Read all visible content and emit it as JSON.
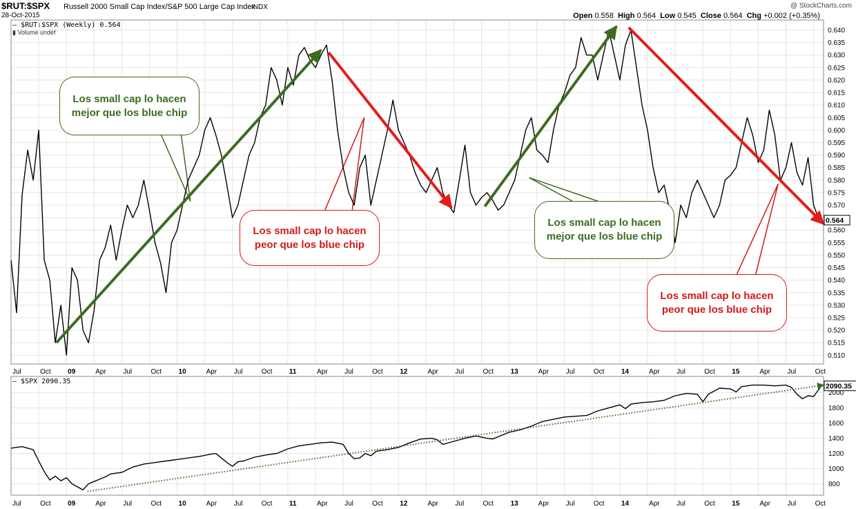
{
  "header": {
    "ticker": "$RUT:$SPX",
    "title": "Russell 2000 Small Cap Index/S&P 500 Large Cap Index",
    "exchange": "INDX",
    "date": "28-Oct-2015",
    "watermark": "@ StockCharts.com",
    "ohlc": {
      "open_label": "Open",
      "open": "0.558",
      "high_label": "High",
      "high": "0.564",
      "low_label": "Low",
      "low": "0.545",
      "close_label": "Close",
      "close": "0.564",
      "chg_label": "Chg",
      "chg": "+0.002 (+0.35%)"
    }
  },
  "legend": {
    "main": "$RUT:$SPX (Weekly) 0.564",
    "volume": "Volume undef",
    "lower": "$SPX 2090.35"
  },
  "callouts": [
    {
      "text": "Los small cap lo hacen mejor que los blue chip",
      "color": "#3d6b1e"
    },
    {
      "text": "Los small cap lo hacen peor que los blue chip",
      "color": "#d41818"
    },
    {
      "text": "Los small cap lo hacen mejor que los blue chip",
      "color": "#3d6b1e"
    },
    {
      "text": "Los small cap lo hacen peor que los blue chip",
      "color": "#d41818"
    }
  ],
  "colors": {
    "up_trend": "#3d6b1e",
    "down_trend": "#e41b1b",
    "price_line": "#000000",
    "grid": "#e4e4e4"
  },
  "chart_data": [
    {
      "type": "line",
      "series": [
        {
          "name": "$RUT:$SPX (Weekly)",
          "x": [
            2008.5,
            2008.55,
            2008.6,
            2008.65,
            2008.7,
            2008.75,
            2008.8,
            2008.85,
            2008.9,
            2008.95,
            2009.0,
            2009.05,
            2009.1,
            2009.15,
            2009.2,
            2009.25,
            2009.3,
            2009.35,
            2009.4,
            2009.45,
            2009.5,
            2009.55,
            2009.6,
            2009.65,
            2009.7,
            2009.75,
            2009.8,
            2009.85,
            2009.9,
            2009.95,
            2010.0,
            2010.05,
            2010.1,
            2010.15,
            2010.2,
            2010.25,
            2010.3,
            2010.35,
            2010.4,
            2010.45,
            2010.5,
            2010.55,
            2010.6,
            2010.65,
            2010.7,
            2010.75,
            2010.8,
            2010.85,
            2010.9,
            2010.95,
            2011.0,
            2011.05,
            2011.1,
            2011.15,
            2011.2,
            2011.25,
            2011.3,
            2011.35,
            2011.4,
            2011.45,
            2011.5,
            2011.55,
            2011.6,
            2011.65,
            2011.7,
            2011.75,
            2011.8,
            2011.85,
            2011.9,
            2011.95,
            2012.0,
            2012.05,
            2012.1,
            2012.15,
            2012.2,
            2012.25,
            2012.3,
            2012.35,
            2012.4,
            2012.45,
            2012.5,
            2012.55,
            2012.6,
            2012.65,
            2012.7,
            2012.75,
            2012.8,
            2012.85,
            2012.9,
            2012.95,
            2013.0,
            2013.05,
            2013.1,
            2013.15,
            2013.2,
            2013.25,
            2013.3,
            2013.35,
            2013.4,
            2013.45,
            2013.5,
            2013.55,
            2013.6,
            2013.65,
            2013.7,
            2013.75,
            2013.8,
            2013.85,
            2013.9,
            2013.95,
            2014.0,
            2014.05,
            2014.1,
            2014.15,
            2014.2,
            2014.25,
            2014.3,
            2014.35,
            2014.4,
            2014.45,
            2014.5,
            2014.55,
            2014.6,
            2014.65,
            2014.7,
            2014.75,
            2014.8,
            2014.85,
            2014.9,
            2014.95,
            2015.0,
            2015.05,
            2015.1,
            2015.15,
            2015.2,
            2015.25,
            2015.3,
            2015.35,
            2015.4,
            2015.45,
            2015.5,
            2015.55,
            2015.6,
            2015.65,
            2015.7,
            2015.75,
            2015.8,
            2015.82
          ],
          "values": [
            0.548,
            0.527,
            0.574,
            0.592,
            0.58,
            0.6,
            0.548,
            0.54,
            0.515,
            0.53,
            0.51,
            0.545,
            0.54,
            0.52,
            0.515,
            0.528,
            0.548,
            0.553,
            0.562,
            0.548,
            0.56,
            0.57,
            0.565,
            0.57,
            0.58,
            0.568,
            0.555,
            0.547,
            0.535,
            0.555,
            0.56,
            0.57,
            0.58,
            0.585,
            0.59,
            0.6,
            0.605,
            0.598,
            0.59,
            0.578,
            0.565,
            0.57,
            0.58,
            0.59,
            0.595,
            0.605,
            0.61,
            0.625,
            0.62,
            0.61,
            0.625,
            0.618,
            0.63,
            0.633,
            0.628,
            0.625,
            0.63,
            0.634,
            0.62,
            0.6,
            0.585,
            0.575,
            0.57,
            0.585,
            0.59,
            0.57,
            0.58,
            0.59,
            0.6,
            0.612,
            0.6,
            0.595,
            0.59,
            0.583,
            0.578,
            0.575,
            0.58,
            0.585,
            0.575,
            0.57,
            0.567,
            0.58,
            0.594,
            0.575,
            0.57,
            0.573,
            0.575,
            0.572,
            0.568,
            0.57,
            0.575,
            0.58,
            0.59,
            0.6,
            0.605,
            0.592,
            0.59,
            0.587,
            0.6,
            0.61,
            0.615,
            0.622,
            0.625,
            0.637,
            0.63,
            0.63,
            0.62,
            0.63,
            0.64,
            0.63,
            0.62,
            0.634,
            0.64,
            0.625,
            0.61,
            0.6,
            0.585,
            0.575,
            0.578,
            0.568,
            0.555,
            0.57,
            0.565,
            0.575,
            0.58,
            0.575,
            0.57,
            0.565,
            0.57,
            0.58,
            0.582,
            0.585,
            0.595,
            0.605,
            0.598,
            0.587,
            0.592,
            0.608,
            0.598,
            0.58,
            0.585,
            0.595,
            0.583,
            0.578,
            0.589,
            0.57,
            0.564,
            0.564
          ]
        }
      ],
      "ylim": [
        0.5065,
        0.644
      ],
      "xlim": [
        2008.5,
        2015.84
      ],
      "x_ticks": [
        {
          "x": 2008.5,
          "label": "Jul"
        },
        {
          "x": 2008.75,
          "label": "Oct"
        },
        {
          "x": 2009.0,
          "label": "09"
        },
        {
          "x": 2009.25,
          "label": "Apr"
        },
        {
          "x": 2009.5,
          "label": "Jul"
        },
        {
          "x": 2009.75,
          "label": "Oct"
        },
        {
          "x": 2010.0,
          "label": "10"
        },
        {
          "x": 2010.25,
          "label": "Apr"
        },
        {
          "x": 2010.5,
          "label": "Jul"
        },
        {
          "x": 2010.75,
          "label": "Oct"
        },
        {
          "x": 2011.0,
          "label": "11"
        },
        {
          "x": 2011.25,
          "label": "Apr"
        },
        {
          "x": 2011.5,
          "label": "Jul"
        },
        {
          "x": 2011.75,
          "label": "Oct"
        },
        {
          "x": 2012.0,
          "label": "12"
        },
        {
          "x": 2012.25,
          "label": "Apr"
        },
        {
          "x": 2012.5,
          "label": "Jul"
        },
        {
          "x": 2012.75,
          "label": "Oct"
        },
        {
          "x": 2013.0,
          "label": "13"
        },
        {
          "x": 2013.25,
          "label": "Apr"
        },
        {
          "x": 2013.5,
          "label": "Jul"
        },
        {
          "x": 2013.75,
          "label": "Oct"
        },
        {
          "x": 2014.0,
          "label": "14"
        },
        {
          "x": 2014.25,
          "label": "Apr"
        },
        {
          "x": 2014.5,
          "label": "Jul"
        },
        {
          "x": 2014.75,
          "label": "Oct"
        },
        {
          "x": 2015.0,
          "label": "15"
        },
        {
          "x": 2015.25,
          "label": "Apr"
        },
        {
          "x": 2015.5,
          "label": "Jul"
        },
        {
          "x": 2015.75,
          "label": "Oct"
        }
      ],
      "y_ticks": [
        "0.510",
        "0.515",
        "0.520",
        "0.525",
        "0.530",
        "0.535",
        "0.540",
        "0.545",
        "0.550",
        "0.555",
        "0.560",
        "0.565",
        "0.570",
        "0.575",
        "0.580",
        "0.585",
        "0.590",
        "0.595",
        "0.600",
        "0.605",
        "0.610",
        "0.615",
        "0.620",
        "0.625",
        "0.630",
        "0.635",
        "0.640"
      ],
      "last_value_label": "0.564",
      "trend_arrows": [
        {
          "color": "#3d6b1e",
          "from": [
            2008.91,
            0.515
          ],
          "to": [
            2011.3,
            0.632
          ]
        },
        {
          "color": "#e41b1b",
          "from": [
            2011.37,
            0.631
          ],
          "to": [
            2012.48,
            0.569
          ]
        },
        {
          "color": "#3d6b1e",
          "from": [
            2012.78,
            0.5695
          ],
          "to": [
            2013.97,
            0.6415
          ]
        },
        {
          "color": "#e41b1b",
          "from": [
            2014.08,
            0.641
          ],
          "to": [
            2015.84,
            0.5625
          ]
        }
      ]
    },
    {
      "type": "line",
      "series": [
        {
          "name": "$SPX",
          "x": [
            2008.5,
            2008.6,
            2008.7,
            2008.75,
            2008.8,
            2008.85,
            2008.9,
            2008.95,
            2009.0,
            2009.05,
            2009.1,
            2009.15,
            2009.2,
            2009.25,
            2009.3,
            2009.35,
            2009.4,
            2009.5,
            2009.6,
            2009.7,
            2009.8,
            2009.9,
            2010.0,
            2010.1,
            2010.2,
            2010.3,
            2010.35,
            2010.45,
            2010.5,
            2010.55,
            2010.6,
            2010.7,
            2010.8,
            2010.9,
            2011.0,
            2011.1,
            2011.2,
            2011.3,
            2011.4,
            2011.5,
            2011.55,
            2011.6,
            2011.65,
            2011.7,
            2011.75,
            2011.8,
            2011.9,
            2012.0,
            2012.1,
            2012.2,
            2012.3,
            2012.35,
            2012.4,
            2012.5,
            2012.6,
            2012.7,
            2012.8,
            2012.85,
            2012.9,
            2013.0,
            2013.1,
            2013.2,
            2013.3,
            2013.4,
            2013.5,
            2013.6,
            2013.7,
            2013.8,
            2013.9,
            2014.0,
            2014.05,
            2014.1,
            2014.2,
            2014.3,
            2014.4,
            2014.5,
            2014.6,
            2014.7,
            2014.75,
            2014.8,
            2014.9,
            2015.0,
            2015.05,
            2015.1,
            2015.2,
            2015.3,
            2015.4,
            2015.5,
            2015.55,
            2015.6,
            2015.65,
            2015.7,
            2015.75,
            2015.8,
            2015.82
          ],
          "values": [
            1270,
            1290,
            1250,
            1100,
            960,
            850,
            900,
            840,
            880,
            800,
            760,
            720,
            800,
            830,
            860,
            890,
            930,
            950,
            1020,
            1060,
            1080,
            1100,
            1120,
            1140,
            1160,
            1190,
            1200,
            1080,
            1030,
            1090,
            1100,
            1150,
            1180,
            1200,
            1260,
            1300,
            1320,
            1340,
            1350,
            1320,
            1200,
            1130,
            1140,
            1200,
            1170,
            1230,
            1250,
            1280,
            1340,
            1390,
            1400,
            1380,
            1320,
            1360,
            1400,
            1430,
            1400,
            1390,
            1420,
            1480,
            1510,
            1560,
            1620,
            1650,
            1680,
            1690,
            1700,
            1760,
            1800,
            1840,
            1790,
            1850,
            1870,
            1880,
            1900,
            1960,
            1990,
            1980,
            1880,
            1980,
            2060,
            2050,
            2010,
            2080,
            2100,
            2100,
            2090,
            2100,
            2070,
            1980,
            1920,
            1960,
            1950,
            2050,
            2090.35
          ]
        }
      ],
      "ylim": [
        650,
        2215
      ],
      "y_ticks": [
        "800",
        "1000",
        "1200",
        "1400",
        "1600",
        "1800",
        "2000"
      ],
      "last_value_label": "2090.35",
      "trend_line": {
        "color": "#3d6b1e",
        "style": "dotted",
        "from": [
          2009.19,
          700
        ],
        "to": [
          2015.84,
          2100
        ]
      }
    }
  ]
}
